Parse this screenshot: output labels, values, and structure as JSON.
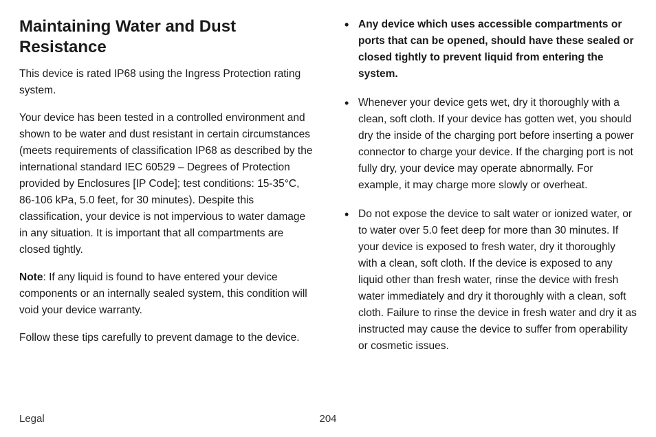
{
  "heading": "Maintaining Water and Dust Resistance",
  "para1": "This device is rated IP68 using the Ingress Protection rating system.",
  "para2": "Your device has been tested in a controlled environment and shown to be water and dust resistant in certain circumstances (meets requirements of classification IP68 as described by the international standard IEC 60529 – Degrees of Protection provided by Enclosures [IP Code]; test conditions: 15-35°C, 86-106 kPa, 5.0 feet, for 30 minutes). Despite this classification, your device is not impervious to water damage in any situation. It is important that all compartments are closed tightly.",
  "noteLabel": "Note",
  "noteText": ": If any liquid is found to have entered your device components or an internally sealed system, this condition will void your device warranty.",
  "para3": "Follow these tips carefully to prevent damage to the device.",
  "bullets": [
    {
      "text": "Any device which uses accessible compartments or ports that can be opened, should have these sealed or closed tightly to prevent liquid from entering the system.",
      "bold": true
    },
    {
      "text": "Whenever your device gets wet, dry it thoroughly with a clean, soft cloth. If your device has gotten wet, you should dry the inside of the charging port before inserting a power connector to charge your device. If the charging port is not fully dry, your device may operate abnormally. For example, it may charge more slowly or overheat.",
      "bold": false
    },
    {
      "text": "Do not expose the device to salt water or ionized water, or to water over 5.0 feet deep for more than 30 minutes. If your device is exposed to fresh water, dry it thoroughly with a clean, soft cloth. If the device is exposed to any liquid other than fresh water, rinse the device with fresh water immediately and dry it thoroughly with a clean, soft cloth. Failure to rinse the device in fresh water and dry it as instructed may cause the device to suffer from operability or cosmetic issues.",
      "bold": false
    }
  ],
  "footer": {
    "section": "Legal",
    "page": "204"
  }
}
